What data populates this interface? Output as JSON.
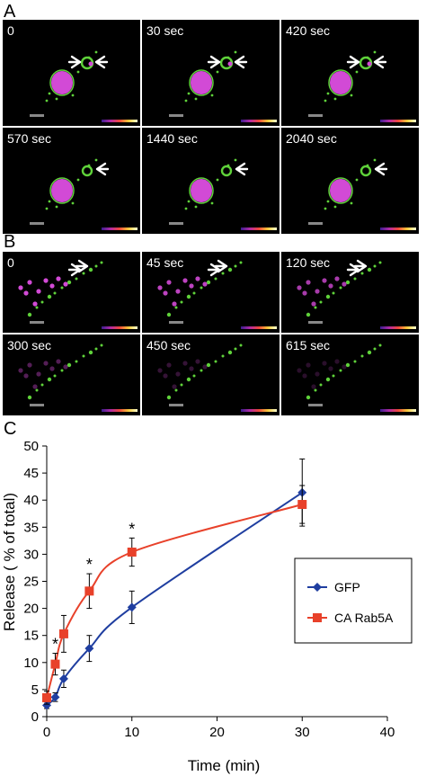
{
  "panels": {
    "a": "A",
    "b": "B",
    "c": "C"
  },
  "frames_a": [
    "0",
    "30 sec",
    "420 sec",
    "570 sec",
    "1440 sec",
    "2040 sec"
  ],
  "frames_b": [
    "0",
    "45 sec",
    "120 sec",
    "300 sec",
    "450 sec",
    "615 sec"
  ],
  "colors": {
    "gfp": "#1f3ea0",
    "ca_rab5a": "#e8412a",
    "green": "#5fd23a",
    "magenta": "#d24ad6"
  },
  "chart_data": {
    "type": "line",
    "xlabel": "Time (min)",
    "ylabel": "Release ( % of total)",
    "xlim": [
      0,
      40
    ],
    "ylim": [
      0,
      50
    ],
    "xticks": [
      0,
      10,
      20,
      30,
      40
    ],
    "yticks": [
      0,
      5,
      10,
      15,
      20,
      25,
      30,
      35,
      40,
      45,
      50
    ],
    "legend_position": "right",
    "series": [
      {
        "name": "GFP",
        "marker": "diamond",
        "color": "#1f3ea0",
        "x": [
          0,
          1,
          2,
          5,
          10,
          30
        ],
        "y": [
          2.1,
          3.6,
          7.0,
          12.6,
          20.2,
          41.4
        ],
        "err": [
          0.6,
          0.8,
          1.6,
          2.4,
          3.0,
          6.2
        ]
      },
      {
        "name": "CA Rab5A",
        "marker": "square",
        "color": "#e8412a",
        "x": [
          0,
          1,
          2,
          5,
          10,
          30
        ],
        "y": [
          3.5,
          9.7,
          15.3,
          23.2,
          30.4,
          39.2
        ],
        "err": [
          1.2,
          2.0,
          3.4,
          3.2,
          2.6,
          3.5
        ]
      }
    ],
    "annotations": [
      {
        "text": "*",
        "x": 1
      },
      {
        "text": "*",
        "x": 5
      },
      {
        "text": "*",
        "x": 10
      }
    ]
  }
}
